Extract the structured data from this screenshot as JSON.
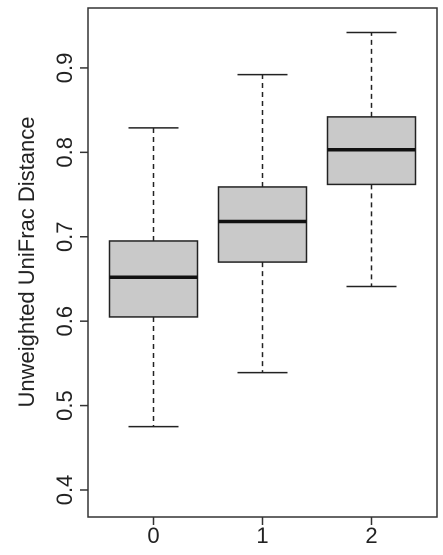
{
  "chart_data": {
    "type": "box",
    "y_label": "Unweighted UniFrac Distance",
    "categories": [
      "0",
      "1",
      "2"
    ],
    "boxes": [
      {
        "whislo": 0.475,
        "q1": 0.605,
        "med": 0.652,
        "q3": 0.695,
        "whishi": 0.829
      },
      {
        "whislo": 0.539,
        "q1": 0.67,
        "med": 0.718,
        "q3": 0.759,
        "whishi": 0.892
      },
      {
        "whislo": 0.641,
        "q1": 0.762,
        "med": 0.803,
        "q3": 0.842,
        "whishi": 0.942
      }
    ],
    "color": "#c0c0c0",
    "ylim": [
      0.368,
      0.971
    ],
    "yticks": [
      0.4,
      0.5,
      0.6,
      0.7,
      0.8,
      0.9
    ]
  }
}
